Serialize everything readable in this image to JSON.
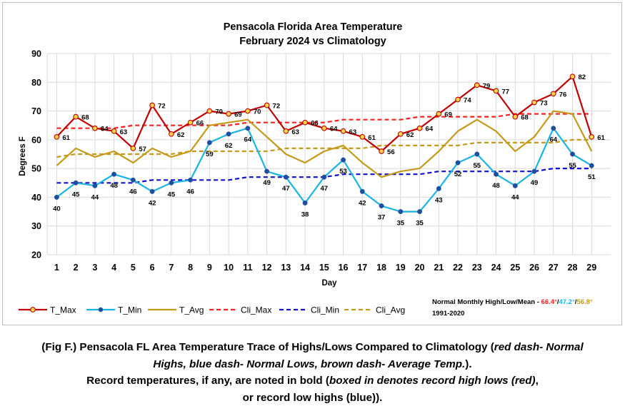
{
  "chart_data": {
    "type": "line",
    "title": "Pensacola Florida Area Temperature",
    "subtitle": "February 2024 vs Climatology",
    "xlabel": "Day",
    "ylabel": "Degrees F",
    "ylim": [
      20,
      90
    ],
    "yticks": [
      20,
      30,
      40,
      50,
      60,
      70,
      80,
      90
    ],
    "x": [
      1,
      2,
      3,
      4,
      5,
      6,
      7,
      8,
      9,
      10,
      11,
      12,
      13,
      14,
      15,
      16,
      17,
      18,
      19,
      20,
      21,
      22,
      23,
      24,
      25,
      26,
      27,
      28,
      29
    ],
    "grid": true,
    "legend_position": "bottom",
    "series": [
      {
        "name": "T_Max",
        "color": "#c00000",
        "style": "solid",
        "marker": "circle-yellow",
        "values": [
          61,
          68,
          64,
          63,
          57,
          72,
          62,
          66,
          70,
          69,
          70,
          72,
          63,
          66,
          64,
          63,
          61,
          56,
          62,
          64,
          69,
          74,
          79,
          77,
          68,
          73,
          76,
          82,
          61
        ]
      },
      {
        "name": "T_Min",
        "color": "#19b4e6",
        "style": "solid",
        "marker": "dot-blue",
        "values": [
          40,
          45,
          44,
          48,
          46,
          42,
          45,
          46,
          59,
          62,
          64,
          49,
          47,
          38,
          47,
          53,
          42,
          37,
          35,
          35,
          43,
          52,
          55,
          48,
          44,
          49,
          64,
          55,
          51
        ]
      },
      {
        "name": "T_Avg",
        "color": "#c59a1a",
        "style": "solid",
        "marker": "none",
        "values": [
          51,
          57,
          54,
          56,
          52,
          57,
          54,
          56,
          65,
          66,
          67,
          61,
          55,
          52,
          56,
          58,
          52,
          47,
          49,
          50,
          56,
          63,
          67,
          63,
          56,
          61,
          70,
          69,
          56
        ]
      },
      {
        "name": "Cli_Max",
        "color": "#ff2020",
        "style": "dash",
        "marker": "none",
        "values": [
          64,
          64,
          64,
          64,
          65,
          65,
          65,
          65,
          65,
          65,
          66,
          66,
          66,
          66,
          66,
          67,
          67,
          67,
          67,
          68,
          68,
          68,
          68,
          68,
          69,
          69,
          69,
          69,
          69
        ]
      },
      {
        "name": "Cli_Min",
        "color": "#1010d0",
        "style": "dash",
        "marker": "none",
        "values": [
          45,
          45,
          45,
          45,
          45,
          46,
          46,
          46,
          46,
          46,
          47,
          47,
          47,
          47,
          47,
          48,
          48,
          48,
          48,
          48,
          49,
          49,
          49,
          49,
          49,
          49,
          50,
          50,
          50
        ]
      },
      {
        "name": "Cli_Avg",
        "color": "#c59a1a",
        "style": "dash",
        "marker": "none",
        "values": [
          54,
          55,
          55,
          55,
          55,
          55,
          55,
          56,
          56,
          56,
          56,
          56,
          57,
          57,
          57,
          57,
          57,
          58,
          58,
          58,
          58,
          58,
          59,
          59,
          59,
          59,
          59,
          60,
          60
        ]
      }
    ],
    "data_labels": {
      "T_Max": [
        "61",
        "68",
        "64",
        "63",
        "57",
        "72",
        "62",
        "66",
        "70",
        "69",
        "70",
        "72",
        "63",
        "66",
        "64",
        "63",
        "61",
        "56",
        "62",
        "64",
        "69",
        "74",
        "79",
        "77",
        "68",
        "73",
        "76",
        "82",
        "61"
      ],
      "T_Min": [
        "40",
        "45",
        "44",
        "48",
        "46",
        "42",
        "45",
        "46",
        "59",
        "62",
        "64",
        "49",
        "47",
        "38",
        "47",
        "53",
        "42",
        "37",
        "35",
        "35",
        "43",
        "52",
        "55",
        "48",
        "44",
        "49",
        "64",
        "55",
        "51"
      ]
    },
    "note": {
      "prefix": "Normal Monthly High/Low/Mean - ",
      "high": "66.4°",
      "sep1": "/",
      "low": "47.2°",
      "sep2": "/",
      "mean": "56.8°",
      "period": "1991-2020",
      "high_color": "#ff2020",
      "low_color": "#19b4e6",
      "mean_color": "#c59a1a"
    }
  },
  "caption": {
    "line1_a": "(Fig F.) Pensacola FL Area Temperature Trace of Highs/Lows Compared to Climatology (",
    "line1_b": "red dash- Normal",
    "line2_a": "Highs, blue dash- Normal Lows, brown dash- Average Temp.",
    "line2_b": ").",
    "line3_a": "Record temperatures, if any, are noted in bold (",
    "line3_b": "boxed in denotes record high lows (red)",
    "line3_c": ",",
    "line4": "or record low highs (blue))."
  }
}
